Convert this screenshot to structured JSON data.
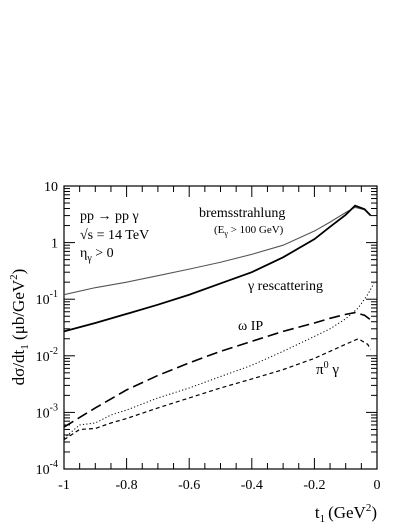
{
  "chart_data": {
    "type": "line",
    "xlabel": "t",
    "xlabel_sub": "1",
    "xlabel_unit": "(GeV",
    "xlabel_unit_sup": "2",
    "xlabel_unit_close": ")",
    "ylabel_text": "dσ/dt",
    "ylabel_sub": "1",
    "ylabel_unit": " (μb/GeV",
    "ylabel_unit_sup": "2",
    "ylabel_unit_close": ")",
    "xlim": [
      -1,
      0
    ],
    "ylim": [
      0.0001,
      10
    ],
    "yscale": "log",
    "grid": false,
    "x_ticks": [
      {
        "value": -1,
        "label": "-1"
      },
      {
        "value": -0.8,
        "label": "-0.8"
      },
      {
        "value": -0.6,
        "label": "-0.6"
      },
      {
        "value": -0.4,
        "label": "-0.4"
      },
      {
        "value": -0.2,
        "label": "-0.2"
      },
      {
        "value": 0,
        "label": "0"
      }
    ],
    "y_ticks": [
      {
        "value": 0.0001,
        "base": "10",
        "exp": "-4"
      },
      {
        "value": 0.001,
        "base": "10",
        "exp": "-3"
      },
      {
        "value": 0.01,
        "base": "10",
        "exp": "-2"
      },
      {
        "value": 0.1,
        "base": "10",
        "exp": "-1"
      },
      {
        "value": 1,
        "base": "1",
        "exp": ""
      },
      {
        "value": 10,
        "base": "10",
        "exp": ""
      }
    ],
    "process": {
      "line1": "pp → pp γ",
      "line2": "√s = 14 TeV",
      "line3_base": "η",
      "line3_sub": "γ",
      "line3_rest": " > 0"
    },
    "series": [
      {
        "name": "bremsstrahlung",
        "condition": "(E",
        "condition_sub": "γ",
        "condition_rest": " > 100 GeV)",
        "style": "solid-thin",
        "color": "#555555",
        "x": [
          -1,
          -0.9,
          -0.8,
          -0.7,
          -0.6,
          -0.5,
          -0.4,
          -0.3,
          -0.2,
          -0.15,
          -0.1,
          -0.07,
          -0.04,
          -0.02
        ],
        "y": [
          0.12,
          0.16,
          0.2,
          0.26,
          0.34,
          0.45,
          0.62,
          0.9,
          1.6,
          2.3,
          3.4,
          4.2,
          3.8,
          3.0
        ]
      },
      {
        "name": "bremsstrahlung (γ rescattering)",
        "style": "solid-thick",
        "color": "#000000",
        "x": [
          -1,
          -0.9,
          -0.8,
          -0.7,
          -0.6,
          -0.5,
          -0.4,
          -0.3,
          -0.2,
          -0.15,
          -0.1,
          -0.07,
          -0.04,
          -0.02
        ],
        "y": [
          0.027,
          0.038,
          0.055,
          0.08,
          0.12,
          0.19,
          0.3,
          0.55,
          1.15,
          1.9,
          3.1,
          4.5,
          3.9,
          3.0
        ]
      },
      {
        "name": "γ rescattering",
        "style": "dotted",
        "color": "#000000",
        "x": [
          -1,
          -0.95,
          -0.9,
          -0.85,
          -0.8,
          -0.7,
          -0.6,
          -0.5,
          -0.4,
          -0.3,
          -0.2,
          -0.15,
          -0.1,
          -0.06,
          -0.03,
          -0.01
        ],
        "y": [
          0.00035,
          0.0006,
          0.00065,
          0.0009,
          0.0011,
          0.0018,
          0.0027,
          0.0043,
          0.0068,
          0.012,
          0.022,
          0.03,
          0.045,
          0.07,
          0.12,
          0.19
        ]
      },
      {
        "name": "ω IP",
        "style": "long-dash",
        "color": "#000000",
        "x": [
          -1,
          -0.9,
          -0.8,
          -0.7,
          -0.6,
          -0.5,
          -0.4,
          -0.3,
          -0.2,
          -0.15,
          -0.1,
          -0.07,
          -0.04,
          -0.02
        ],
        "y": [
          0.00055,
          0.0012,
          0.0025,
          0.0045,
          0.0075,
          0.012,
          0.018,
          0.027,
          0.038,
          0.046,
          0.054,
          0.058,
          0.052,
          0.043
        ]
      },
      {
        "name": "π",
        "name_sup": "0",
        "name_rest": " γ",
        "style": "short-dash",
        "color": "#000000",
        "x": [
          -1,
          -0.95,
          -0.9,
          -0.85,
          -0.8,
          -0.7,
          -0.6,
          -0.5,
          -0.4,
          -0.3,
          -0.2,
          -0.15,
          -0.1,
          -0.06,
          -0.03,
          -0.02
        ],
        "y": [
          0.00033,
          0.0005,
          0.00052,
          0.00065,
          0.00078,
          0.0012,
          0.0018,
          0.0027,
          0.0039,
          0.0057,
          0.009,
          0.012,
          0.016,
          0.02,
          0.016,
          0.013
        ]
      }
    ]
  }
}
